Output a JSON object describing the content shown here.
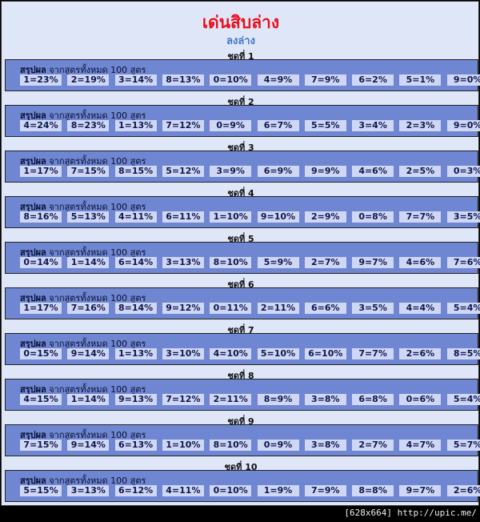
{
  "header": {
    "title": "เด่นสิบล่าง",
    "subtitle": "ลงล่าง"
  },
  "sets": [
    {
      "name": "ชุดที่ 1",
      "label": "สรุปผล",
      "note": "จากสูตรทั้งหมด 100 สูตร",
      "cells": [
        "1=23%",
        "2=19%",
        "3=14%",
        "8=13%",
        "0=10%",
        "4=9%",
        "7=9%",
        "6=2%",
        "5=1%",
        "9=0%"
      ]
    },
    {
      "name": "ชุดที่ 2",
      "label": "สรุปผล",
      "note": "จากสูตรทั้งหมด 100 สูตร",
      "cells": [
        "4=24%",
        "8=23%",
        "1=13%",
        "7=12%",
        "0=9%",
        "6=7%",
        "5=5%",
        "3=4%",
        "2=3%",
        "9=0%"
      ]
    },
    {
      "name": "ชุดที่ 3",
      "label": "สรุปผล",
      "note": "จากสูตรทั้งหมด 100 สูตร",
      "cells": [
        "1=17%",
        "7=15%",
        "8=15%",
        "5=12%",
        "3=9%",
        "6=9%",
        "9=9%",
        "4=6%",
        "2=5%",
        "0=3%"
      ]
    },
    {
      "name": "ชุดที่ 4",
      "label": "สรุปผล",
      "note": "จากสูตรทั้งหมด 100 สูตร",
      "cells": [
        "8=16%",
        "5=13%",
        "4=11%",
        "6=11%",
        "1=10%",
        "9=10%",
        "2=9%",
        "0=8%",
        "7=7%",
        "3=5%"
      ]
    },
    {
      "name": "ชุดที่ 5",
      "label": "สรุปผล",
      "note": "จากสูตรทั้งหมด 100 สูตร",
      "cells": [
        "0=14%",
        "1=14%",
        "6=14%",
        "3=13%",
        "8=10%",
        "5=9%",
        "2=7%",
        "9=7%",
        "4=6%",
        "7=6%"
      ]
    },
    {
      "name": "ชุดที่ 6",
      "label": "สรุปผล",
      "note": "จากสูตรทั้งหมด 100 สูตร",
      "cells": [
        "1=17%",
        "7=16%",
        "8=14%",
        "9=12%",
        "0=11%",
        "2=11%",
        "6=6%",
        "3=5%",
        "4=4%",
        "5=4%"
      ]
    },
    {
      "name": "ชุดที่ 7",
      "label": "สรุปผล",
      "note": "จากสูตรทั้งหมด 100 สูตร",
      "cells": [
        "0=15%",
        "9=14%",
        "1=13%",
        "3=10%",
        "4=10%",
        "5=10%",
        "6=10%",
        "7=7%",
        "2=6%",
        "8=5%"
      ]
    },
    {
      "name": "ชุดที่ 8",
      "label": "สรุปผล",
      "note": "จากสูตรทั้งหมด 100 สูตร",
      "cells": [
        "4=15%",
        "1=14%",
        "9=13%",
        "7=12%",
        "2=11%",
        "8=9%",
        "3=8%",
        "6=8%",
        "0=6%",
        "5=4%"
      ]
    },
    {
      "name": "ชุดที่ 9",
      "label": "สรุปผล",
      "note": "จากสูตรทั้งหมด 100 สูตร",
      "cells": [
        "7=15%",
        "9=14%",
        "6=13%",
        "1=10%",
        "8=10%",
        "0=9%",
        "3=8%",
        "2=7%",
        "4=7%",
        "5=7%"
      ]
    },
    {
      "name": "ชุดที่ 10",
      "label": "สรุปผล",
      "note": "จากสูตรทั้งหมด 100 สูตร",
      "cells": [
        "5=15%",
        "3=13%",
        "6=12%",
        "4=11%",
        "0=10%",
        "1=9%",
        "7=9%",
        "8=8%",
        "9=7%",
        "2=6%"
      ]
    }
  ],
  "footer": {
    "text": "[628x664] http://upic.me/"
  }
}
